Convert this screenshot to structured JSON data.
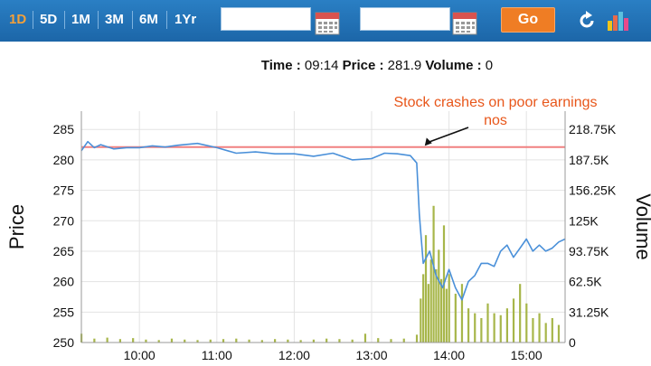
{
  "toolbar": {
    "ranges": [
      "1D",
      "5D",
      "1M",
      "3M",
      "6M",
      "1Yr"
    ],
    "active_range": "1D",
    "from_date": "",
    "to_date": "",
    "go_label": "Go",
    "icons": [
      "calendar-icon",
      "calendar-icon",
      "refresh-icon",
      "bar-chart-icon"
    ],
    "colors": {
      "bar": "#1c66a8",
      "active": "#f3a03a",
      "go": "#ef7d24"
    }
  },
  "readout": {
    "time_label": "Time :",
    "time_value": "09:14",
    "price_label": "Price :",
    "price_value": "281.9",
    "volume_label": "Volume :",
    "volume_value": "0"
  },
  "chart_data": {
    "type": "line",
    "title": "",
    "xlabel": "",
    "ylabel": "Price",
    "y2label": "Volume",
    "x_ticks": [
      "10:00",
      "11:00",
      "12:00",
      "13:00",
      "14:00",
      "15:00"
    ],
    "y_ticks": [
      285,
      280,
      275,
      270,
      265,
      260,
      255,
      250
    ],
    "y2_ticks": [
      "218.75K",
      "187.5K",
      "156.25K",
      "125K",
      "93.75K",
      "62.5K",
      "31.25K",
      "0"
    ],
    "ylim": [
      250,
      288
    ],
    "y2lim": [
      0,
      237000
    ],
    "xlim": [
      "09:15",
      "15:30"
    ],
    "grid": true,
    "reference_line": {
      "value": 282.1,
      "color": "#f08080"
    },
    "annotation": {
      "text": "Stock crashes on poor earnings nos",
      "line1": "Stock crashes on poor earnings",
      "line2": "nos",
      "color": "#e8561a",
      "points_to": [
        "13:37",
        282
      ]
    },
    "series": [
      {
        "color": "#4a90d9",
        "x": [
          "09:15",
          "09:20",
          "09:25",
          "09:30",
          "09:40",
          "09:50",
          "10:00",
          "10:10",
          "10:20",
          "10:30",
          "10:45",
          "11:00",
          "11:15",
          "11:30",
          "11:45",
          "12:00",
          "12:15",
          "12:30",
          "12:45",
          "13:00",
          "13:10",
          "13:20",
          "13:30",
          "13:35",
          "13:37",
          "13:40",
          "13:45",
          "13:50",
          "13:55",
          "14:00",
          "14:05",
          "14:10",
          "14:15",
          "14:20",
          "14:25",
          "14:30",
          "14:35",
          "14:40",
          "14:45",
          "14:50",
          "14:55",
          "15:00",
          "15:05",
          "15:10",
          "15:15",
          "15:20",
          "15:25",
          "15:30"
        ],
        "y": [
          281.5,
          283.0,
          282.0,
          282.5,
          281.8,
          282.0,
          282.0,
          282.3,
          282.1,
          282.4,
          282.7,
          282.0,
          281.1,
          281.3,
          281.0,
          281.0,
          280.6,
          281.1,
          280.0,
          280.2,
          281.1,
          281.0,
          280.7,
          279.5,
          271.0,
          263.0,
          265.0,
          261.0,
          259.0,
          262.0,
          259.0,
          257.0,
          260.0,
          261.0,
          263.0,
          263.0,
          262.5,
          265.0,
          266.0,
          264.0,
          265.5,
          267.0,
          265.0,
          266.0,
          265.0,
          265.5,
          266.5,
          267.0
        ]
      },
      {
        "name": "Volume",
        "type": "bar",
        "color": "#a7b64a",
        "x": [
          "09:15",
          "09:25",
          "09:35",
          "09:45",
          "09:55",
          "10:05",
          "10:15",
          "10:25",
          "10:35",
          "10:45",
          "10:55",
          "11:05",
          "11:15",
          "11:25",
          "11:35",
          "11:45",
          "11:55",
          "12:05",
          "12:15",
          "12:25",
          "12:35",
          "12:45",
          "12:55",
          "13:05",
          "13:15",
          "13:25",
          "13:35",
          "13:38",
          "13:40",
          "13:42",
          "13:44",
          "13:46",
          "13:48",
          "13:50",
          "13:52",
          "13:54",
          "13:56",
          "13:58",
          "14:00",
          "14:05",
          "14:10",
          "14:15",
          "14:20",
          "14:25",
          "14:30",
          "14:35",
          "14:40",
          "14:45",
          "14:50",
          "14:55",
          "15:00",
          "15:05",
          "15:10",
          "15:15",
          "15:20",
          "15:25"
        ],
        "values": [
          9000,
          4000,
          5000,
          3500,
          4500,
          3000,
          2500,
          4000,
          3000,
          2500,
          3000,
          3500,
          4000,
          3000,
          2500,
          3500,
          3000,
          2500,
          3000,
          4000,
          3500,
          3000,
          9000,
          4500,
          3500,
          4000,
          8000,
          45000,
          70000,
          110000,
          60000,
          85000,
          140000,
          75000,
          95000,
          65000,
          120000,
          55000,
          70000,
          50000,
          60000,
          35000,
          30000,
          25000,
          40000,
          30000,
          28000,
          35000,
          45000,
          60000,
          40000,
          25000,
          30000,
          20000,
          25000,
          18000
        ]
      }
    ]
  }
}
